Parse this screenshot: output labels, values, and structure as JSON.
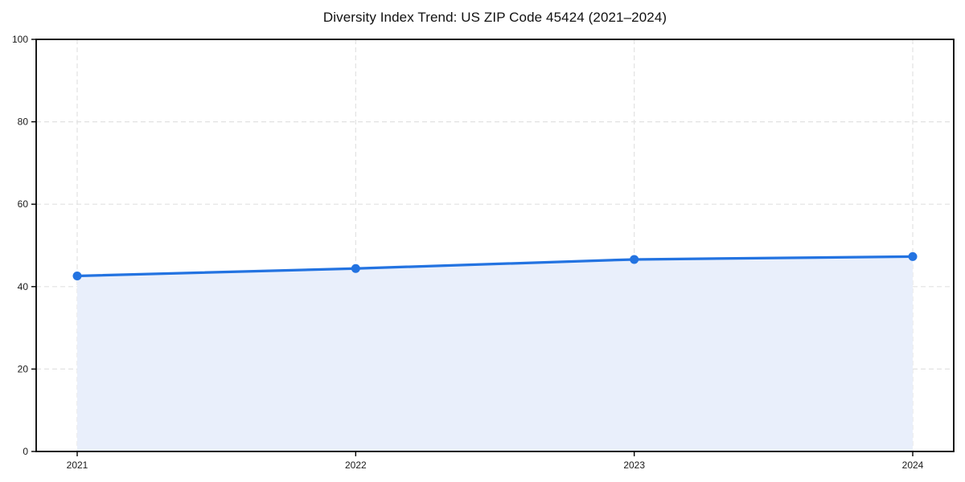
{
  "chart_data": {
    "type": "area",
    "title": "Diversity Index Trend: US ZIP Code 45424 (2021–2024)",
    "categories": [
      "2021",
      "2022",
      "2023",
      "2024"
    ],
    "x": [
      2021,
      2022,
      2023,
      2024
    ],
    "series": [
      {
        "name": "Diversity Index",
        "values": [
          42.6,
          44.4,
          46.6,
          47.3
        ]
      }
    ],
    "xlabel": "",
    "ylabel": "",
    "ylim": [
      0,
      100
    ],
    "yticks": [
      0,
      20,
      40,
      60,
      80,
      100
    ],
    "grid": true,
    "grid_style": "dashed",
    "legend_position": "none",
    "colors": {
      "line": "#2373e1",
      "marker": "#2373e1",
      "fill": "#e9effb",
      "grid": "#e2e2e2",
      "axis": "#000000",
      "text": "#1a1a1a"
    }
  }
}
